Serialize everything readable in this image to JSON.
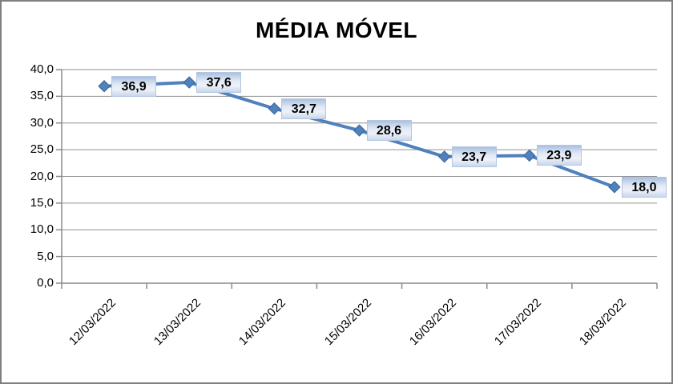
{
  "chart_data": {
    "type": "line",
    "title": "MÉDIA MÓVEL",
    "categories": [
      "12/03/2022",
      "13/03/2022",
      "14/03/2022",
      "15/03/2022",
      "16/03/2022",
      "17/03/2022",
      "18/03/2022"
    ],
    "series": [
      {
        "values": [
          36.9,
          37.6,
          32.7,
          28.6,
          23.7,
          23.9,
          18.0
        ],
        "data_labels": [
          "36,9",
          "37,6",
          "32,7",
          "28,6",
          "23,7",
          "23,9",
          "18,0"
        ]
      }
    ],
    "xlabel": "",
    "ylabel": "",
    "ylim": [
      0,
      40
    ],
    "ytick_step": 5,
    "ytick_labels": [
      "0,0",
      "5,0",
      "10,0",
      "15,0",
      "20,0",
      "25,0",
      "30,0",
      "35,0",
      "40,0"
    ],
    "grid": true,
    "legend_position": "none",
    "marker": "diamond",
    "colors": {
      "line": "#4f81bd",
      "marker_fill": "#4f81bd",
      "marker_border": "#3a6596",
      "gridline": "#909090",
      "axis": "#8a8a8a",
      "frame_border": "#7f7f7f",
      "text": "#000000",
      "background": "#ffffff"
    }
  }
}
